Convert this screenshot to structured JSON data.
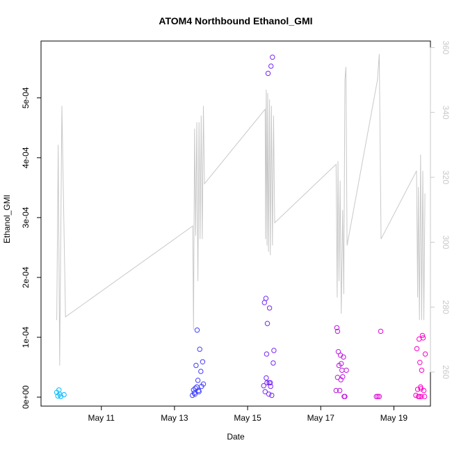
{
  "chart_data": {
    "type": "scatter",
    "title": "ATOM4 Northbound Ethanol_GMI",
    "xlabel": "Date",
    "ylabel": "Ethanol_GMI",
    "x_unit": "days since May 9 00:00",
    "xlim": [
      0.35,
      11.0
    ],
    "ylim": [
      -1.5e-05,
      0.000595
    ],
    "y2lim": [
      249.5,
      362
    ],
    "x_ticks": [
      {
        "value": 2,
        "label": "May 11"
      },
      {
        "value": 4,
        "label": "May 13"
      },
      {
        "value": 6,
        "label": "May 15"
      },
      {
        "value": 8,
        "label": "May 17"
      },
      {
        "value": 10,
        "label": "May 19"
      }
    ],
    "y_ticks": [
      {
        "value": 0,
        "label": "0e+00"
      },
      {
        "value": 0.0001,
        "label": "1e-04"
      },
      {
        "value": 0.0002,
        "label": "2e-04"
      },
      {
        "value": 0.0003,
        "label": "3e-04"
      },
      {
        "value": 0.0004,
        "label": "4e-04"
      },
      {
        "value": 0.0005,
        "label": "5e-04"
      }
    ],
    "y2_ticks": [
      {
        "value": 260,
        "label": "260"
      },
      {
        "value": 280,
        "label": "280"
      },
      {
        "value": 300,
        "label": "300"
      },
      {
        "value": 320,
        "label": "320"
      },
      {
        "value": 340,
        "label": "340"
      },
      {
        "value": 360,
        "label": "360"
      }
    ],
    "series": [
      {
        "name": "Ethanol_GMI",
        "marker": "open-circle",
        "color_scale": [
          "#00bfff",
          "#2050ff",
          "#5a2cff",
          "#b818e0",
          "#ff00c8"
        ],
        "points": [
          {
            "x": 0.78,
            "y": 8e-06
          },
          {
            "x": 0.81,
            "y": 2e-06
          },
          {
            "x": 0.84,
            "y": 1.2e-05
          },
          {
            "x": 0.86,
            "y": 5e-06
          },
          {
            "x": 0.89,
            "y": 1e-06
          },
          {
            "x": 0.98,
            "y": 4e-06
          },
          {
            "x": 4.49,
            "y": 3e-06
          },
          {
            "x": 4.52,
            "y": 1.2e-05
          },
          {
            "x": 4.54,
            "y": 7e-06
          },
          {
            "x": 4.57,
            "y": 1.5e-05
          },
          {
            "x": 4.59,
            "y": 5.3e-05
          },
          {
            "x": 4.62,
            "y": 0.000112
          },
          {
            "x": 4.64,
            "y": 2.8e-05
          },
          {
            "x": 4.67,
            "y": 9e-06
          },
          {
            "x": 4.69,
            "y": 8e-05
          },
          {
            "x": 4.72,
            "y": 4.3e-05
          },
          {
            "x": 4.74,
            "y": 1.8e-05
          },
          {
            "x": 4.77,
            "y": 5.9e-05
          },
          {
            "x": 4.79,
            "y": 2.2e-05
          },
          {
            "x": 4.56,
            "y": 5e-06
          },
          {
            "x": 4.61,
            "y": 1.7e-05
          },
          {
            "x": 4.66,
            "y": 1.1e-05
          },
          {
            "x": 6.44,
            "y": 1.9e-05
          },
          {
            "x": 6.46,
            "y": 0.000158
          },
          {
            "x": 6.48,
            "y": 9e-06
          },
          {
            "x": 6.5,
            "y": 0.000165
          },
          {
            "x": 6.52,
            "y": 7.2e-05
          },
          {
            "x": 6.54,
            "y": 0.000123
          },
          {
            "x": 6.56,
            "y": 0.000541
          },
          {
            "x": 6.58,
            "y": 5e-06
          },
          {
            "x": 6.6,
            "y": 0.000149
          },
          {
            "x": 6.62,
            "y": 2.4e-05
          },
          {
            "x": 6.64,
            "y": 0.000553
          },
          {
            "x": 6.66,
            "y": 3e-06
          },
          {
            "x": 6.68,
            "y": 0.000568
          },
          {
            "x": 6.7,
            "y": 5.7e-05
          },
          {
            "x": 6.72,
            "y": 7.8e-05
          },
          {
            "x": 6.51,
            "y": 3.2e-05
          },
          {
            "x": 6.53,
            "y": 2.4e-05
          },
          {
            "x": 6.59,
            "y": 2.4e-05
          },
          {
            "x": 6.63,
            "y": 1.8e-05
          },
          {
            "x": 8.42,
            "y": 1.1e-05
          },
          {
            "x": 8.44,
            "y": 0.000116
          },
          {
            "x": 8.46,
            "y": 3.3e-05
          },
          {
            "x": 8.48,
            "y": 7.6e-05
          },
          {
            "x": 8.5,
            "y": 5.3e-05
          },
          {
            "x": 8.52,
            "y": 1.1e-05
          },
          {
            "x": 8.54,
            "y": 7e-05
          },
          {
            "x": 8.56,
            "y": 5.6e-05
          },
          {
            "x": 8.58,
            "y": 4.5e-05
          },
          {
            "x": 8.6,
            "y": 3.4e-05
          },
          {
            "x": 8.62,
            "y": 6.7e-05
          },
          {
            "x": 8.64,
            "y": 1e-06
          },
          {
            "x": 8.66,
            "y": 1e-06
          },
          {
            "x": 8.7,
            "y": 4.5e-05
          },
          {
            "x": 8.46,
            "y": 0.00011
          },
          {
            "x": 8.55,
            "y": 2.9e-05
          },
          {
            "x": 9.52,
            "y": 1e-06
          },
          {
            "x": 9.56,
            "y": 1e-06
          },
          {
            "x": 9.6,
            "y": 1e-06
          },
          {
            "x": 9.64,
            "y": 0.00011
          },
          {
            "x": 10.6,
            "y": 3e-06
          },
          {
            "x": 10.63,
            "y": 8.1e-05
          },
          {
            "x": 10.65,
            "y": 1.3e-05
          },
          {
            "x": 10.67,
            "y": 1e-06
          },
          {
            "x": 10.69,
            "y": 9.7e-05
          },
          {
            "x": 10.71,
            "y": 5.8e-05
          },
          {
            "x": 10.73,
            "y": 1.7e-05
          },
          {
            "x": 10.75,
            "y": 1e-06
          },
          {
            "x": 10.76,
            "y": 4.5e-05
          },
          {
            "x": 10.78,
            "y": 0.000103
          },
          {
            "x": 10.8,
            "y": 9.9e-05
          },
          {
            "x": 10.82,
            "y": 1.1e-05
          },
          {
            "x": 10.84,
            "y": 1e-06
          },
          {
            "x": 10.86,
            "y": 7.2e-05
          },
          {
            "x": 10.7,
            "y": 1e-06
          },
          {
            "x": 10.74,
            "y": 1.4e-05
          }
        ]
      },
      {
        "name": "secondary-axis-line",
        "axis": "right",
        "color": "#c8c8c8",
        "points": [
          {
            "x": 0.78,
            "y": 276
          },
          {
            "x": 0.82,
            "y": 330
          },
          {
            "x": 0.86,
            "y": 262
          },
          {
            "x": 0.92,
            "y": 342
          },
          {
            "x": 1.02,
            "y": 277
          },
          {
            "x": 4.5,
            "y": 305
          },
          {
            "x": 4.52,
            "y": 273
          },
          {
            "x": 4.55,
            "y": 335
          },
          {
            "x": 4.58,
            "y": 302
          },
          {
            "x": 4.61,
            "y": 337
          },
          {
            "x": 4.64,
            "y": 288
          },
          {
            "x": 4.67,
            "y": 337
          },
          {
            "x": 4.7,
            "y": 301
          },
          {
            "x": 4.73,
            "y": 339
          },
          {
            "x": 4.76,
            "y": 301
          },
          {
            "x": 4.79,
            "y": 342
          },
          {
            "x": 4.82,
            "y": 318
          },
          {
            "x": 6.48,
            "y": 341
          },
          {
            "x": 6.49,
            "y": 301
          },
          {
            "x": 6.51,
            "y": 347
          },
          {
            "x": 6.53,
            "y": 299
          },
          {
            "x": 6.55,
            "y": 346
          },
          {
            "x": 6.57,
            "y": 297
          },
          {
            "x": 6.6,
            "y": 344
          },
          {
            "x": 6.62,
            "y": 296
          },
          {
            "x": 6.65,
            "y": 342
          },
          {
            "x": 6.68,
            "y": 299
          },
          {
            "x": 6.71,
            "y": 339
          },
          {
            "x": 6.74,
            "y": 306
          },
          {
            "x": 8.42,
            "y": 324
          },
          {
            "x": 8.45,
            "y": 283
          },
          {
            "x": 8.47,
            "y": 325
          },
          {
            "x": 8.5,
            "y": 288
          },
          {
            "x": 8.53,
            "y": 319
          },
          {
            "x": 8.56,
            "y": 278
          },
          {
            "x": 8.6,
            "y": 310
          },
          {
            "x": 8.63,
            "y": 284
          },
          {
            "x": 8.66,
            "y": 350
          },
          {
            "x": 8.69,
            "y": 354
          },
          {
            "x": 8.72,
            "y": 299
          },
          {
            "x": 9.55,
            "y": 350
          },
          {
            "x": 9.6,
            "y": 358
          },
          {
            "x": 9.65,
            "y": 301
          },
          {
            "x": 10.62,
            "y": 322
          },
          {
            "x": 10.65,
            "y": 283
          },
          {
            "x": 10.67,
            "y": 317
          },
          {
            "x": 10.7,
            "y": 276
          },
          {
            "x": 10.73,
            "y": 327
          },
          {
            "x": 10.76,
            "y": 276
          },
          {
            "x": 10.79,
            "y": 322
          },
          {
            "x": 10.82,
            "y": 276
          },
          {
            "x": 10.85,
            "y": 315
          }
        ]
      }
    ]
  }
}
